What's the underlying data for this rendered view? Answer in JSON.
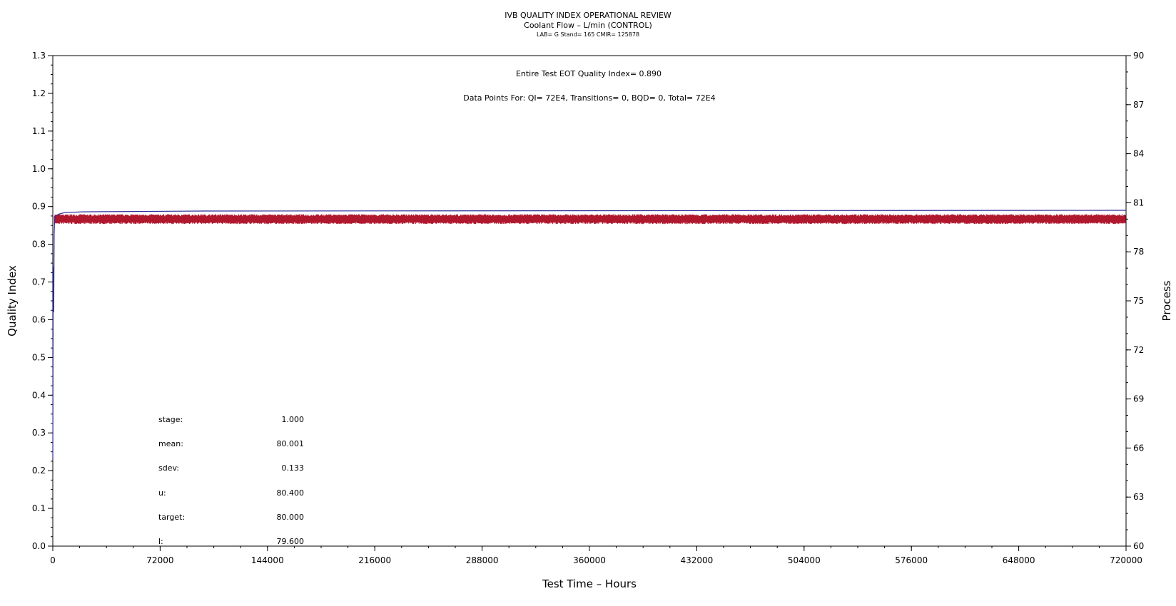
{
  "chart_data": {
    "type": "line",
    "title": "IVB QUALITY INDEX OPERATIONAL REVIEW",
    "subtitle": "Coolant Flow – L/min (CONTROL)",
    "subtitle2": "LAB= G Stand= 165 CMIR= 125878",
    "annotations": {
      "eot": "Entire Test EOT Quality Index=   0.890",
      "points": "Data Points For: QI=  72E4, Transitions=      0, BQD=      0, Total=  72E4"
    },
    "xlabel": "Test Time – Hours",
    "ylabel": "Quality Index",
    "y2label": "Process",
    "xlim": [
      0,
      720000
    ],
    "ylim": [
      0,
      1.3
    ],
    "y2lim": [
      60,
      90
    ],
    "x_ticks": [
      "0",
      "72000",
      "144000",
      "216000",
      "288000",
      "360000",
      "432000",
      "504000",
      "576000",
      "648000",
      "720000"
    ],
    "y_ticks": [
      "0.0",
      "0.1",
      "0.2",
      "0.3",
      "0.4",
      "0.5",
      "0.6",
      "0.7",
      "0.8",
      "0.9",
      "1.0",
      "1.1",
      "1.2",
      "1.3"
    ],
    "y2_ticks": [
      "60",
      "63",
      "66",
      "69",
      "72",
      "75",
      "78",
      "81",
      "84",
      "87",
      "90"
    ],
    "series": [
      {
        "axis": "left",
        "color": "#2b2b9a",
        "x": [
          0,
          300,
          600,
          900,
          1200,
          1500,
          2000,
          4000,
          8000,
          20000,
          100000,
          720000
        ],
        "values": [
          0.23,
          0.74,
          0.62,
          0.83,
          0.86,
          0.87,
          0.875,
          0.88,
          0.884,
          0.886,
          0.888,
          0.89
        ]
      },
      {
        "axis": "right",
        "color": "#b0182e",
        "mean": 80.001,
        "band": [
          79.7,
          80.3
        ],
        "x": [
          0,
          720000
        ],
        "values": [
          80.001,
          80.001
        ]
      }
    ],
    "stats": [
      {
        "label": "stage:",
        "value": "1.000"
      },
      {
        "label": "mean:",
        "value": "80.001"
      },
      {
        "label": "sdev:",
        "value": "0.133"
      },
      {
        "label": "u:",
        "value": "80.400"
      },
      {
        "label": "target:",
        "value": "80.000"
      },
      {
        "label": "l:",
        "value": "79.600"
      }
    ]
  }
}
